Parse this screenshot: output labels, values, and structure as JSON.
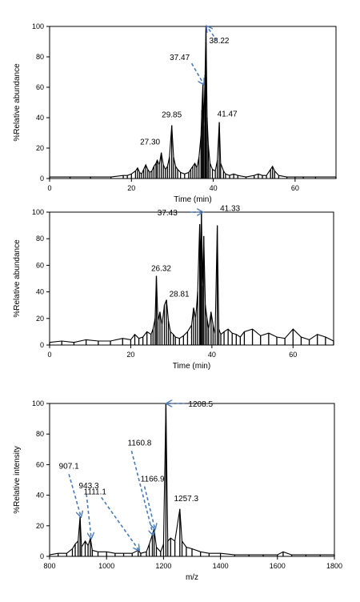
{
  "colors": {
    "trace": "#000000",
    "arrow": "#4a7ab8",
    "axis": "#000000",
    "background": "#ffffff"
  },
  "chart_data": [
    {
      "type": "line",
      "title": "",
      "xlabel": "Time (min)",
      "ylabel": "%Relative abundance",
      "xlim": [
        0,
        70
      ],
      "ylim": [
        0,
        100
      ],
      "xticks": [
        0,
        20,
        40,
        60
      ],
      "yticks": [
        0,
        20,
        40,
        60,
        80,
        100
      ],
      "grid": false,
      "series": [
        {
          "x": [
            0,
            5,
            10,
            15,
            18,
            19,
            20,
            21,
            21.5,
            22,
            22.5,
            23,
            23.5,
            24,
            24.5,
            25,
            25.5,
            26,
            26.3,
            26.8,
            27.3,
            27.8,
            28.3,
            28.8,
            29.3,
            29.85,
            30.3,
            30.8,
            31.3,
            32,
            33,
            34,
            34.5,
            35,
            35.5,
            36,
            36.5,
            37,
            37.2,
            37.47,
            37.7,
            38,
            38.22,
            38.5,
            38.8,
            39.2,
            39.8,
            40.5,
            41,
            41.47,
            41.8,
            42.5,
            43,
            44,
            45,
            46,
            48,
            50,
            51,
            52,
            53,
            54,
            54.5,
            55,
            56,
            58,
            60,
            62,
            65,
            70
          ],
          "y": [
            1,
            1,
            1,
            1,
            2,
            2,
            3,
            5,
            7,
            4,
            3,
            6,
            9,
            6,
            4,
            5,
            8,
            10,
            12,
            9,
            17,
            9,
            6,
            8,
            14,
            35,
            14,
            8,
            6,
            4,
            3,
            4,
            6,
            8,
            10,
            7,
            14,
            28,
            45,
            62,
            35,
            68,
            100,
            40,
            22,
            10,
            6,
            5,
            12,
            37,
            10,
            5,
            3,
            2,
            3,
            2,
            1,
            2,
            3,
            2,
            2,
            6,
            8,
            5,
            2,
            1,
            1,
            1,
            1,
            1
          ]
        }
      ],
      "annotations": [
        {
          "label": "38.22",
          "x": 38.22,
          "y": 100,
          "arrow": true
        },
        {
          "label": "37.47",
          "x": 37.47,
          "y": 62,
          "arrow": true
        },
        {
          "label": "29.85",
          "x": 29.85,
          "y": 35,
          "arrow": false
        },
        {
          "label": "41.47",
          "x": 41.47,
          "y": 37,
          "arrow": false
        },
        {
          "label": "27.30",
          "x": 27.3,
          "y": 17,
          "arrow": false
        }
      ]
    },
    {
      "type": "line",
      "title": "",
      "xlabel": "Time (min)",
      "ylabel": "%Relative abundance",
      "xlim": [
        0,
        70
      ],
      "ylim": [
        0,
        100
      ],
      "xticks": [
        0,
        20,
        40,
        60
      ],
      "yticks": [
        0,
        20,
        40,
        60,
        80,
        100
      ],
      "grid": false,
      "series": [
        {
          "x": [
            0,
            3,
            6,
            9,
            12,
            15,
            18,
            20,
            21,
            22,
            23,
            24,
            25,
            25.5,
            26,
            26.32,
            26.7,
            27.2,
            27.7,
            28.3,
            28.81,
            29.3,
            29.8,
            30.5,
            31,
            32,
            33,
            34,
            35,
            35.5,
            36,
            36.5,
            37,
            37.2,
            37.43,
            37.7,
            38,
            38.4,
            38.8,
            39.2,
            39.8,
            40.3,
            40.8,
            41.33,
            41.7,
            42.2,
            43,
            44,
            45,
            46,
            47,
            48,
            50,
            52,
            54,
            56,
            58,
            60,
            62,
            64,
            66,
            68,
            70
          ],
          "y": [
            2,
            3,
            2,
            4,
            3,
            3,
            5,
            4,
            8,
            5,
            6,
            10,
            8,
            12,
            20,
            52,
            18,
            25,
            15,
            30,
            34,
            18,
            10,
            8,
            6,
            5,
            7,
            10,
            15,
            28,
            20,
            40,
            91,
            60,
            100,
            45,
            82,
            30,
            20,
            12,
            25,
            15,
            8,
            90,
            12,
            8,
            10,
            12,
            9,
            8,
            6,
            10,
            12,
            7,
            9,
            6,
            5,
            12,
            6,
            4,
            8,
            6,
            3
          ]
        }
      ],
      "annotations": [
        {
          "label": "37.43",
          "x": 37.43,
          "y": 100,
          "arrow": true
        },
        {
          "label": "41.33",
          "x": 41.33,
          "y": 90,
          "arrow": false
        },
        {
          "label": "26.32",
          "x": 26.32,
          "y": 52,
          "arrow": false
        },
        {
          "label": "28.81",
          "x": 28.81,
          "y": 34,
          "arrow": false
        }
      ]
    },
    {
      "type": "line",
      "title": "",
      "xlabel": "m/z",
      "ylabel": "%Relative intensity",
      "xlim": [
        800,
        1800
      ],
      "ylim": [
        0,
        100
      ],
      "xticks": [
        800,
        1000,
        1200,
        1400,
        1600,
        1800
      ],
      "yticks": [
        0,
        20,
        40,
        60,
        80,
        100
      ],
      "grid": false,
      "series": [
        {
          "x": [
            800,
            830,
            860,
            880,
            890,
            900,
            907.1,
            912,
            925,
            935,
            943.3,
            950,
            970,
            1000,
            1030,
            1060,
            1090,
            1111.1,
            1120,
            1140,
            1150,
            1160.8,
            1166.9,
            1175,
            1190,
            1200,
            1208.5,
            1215,
            1225,
            1240,
            1257.3,
            1265,
            1280,
            1300,
            1330,
            1360,
            1400,
            1450,
            1500,
            1550,
            1600,
            1620,
            1650,
            1700,
            1750,
            1800
          ],
          "y": [
            1,
            2,
            2,
            5,
            8,
            10,
            26,
            6,
            10,
            7,
            12,
            4,
            3,
            3,
            2,
            2,
            2,
            4,
            2,
            3,
            8,
            14,
            18,
            6,
            3,
            8,
            100,
            10,
            12,
            10,
            31,
            10,
            6,
            5,
            3,
            2,
            2,
            1,
            1,
            1,
            1,
            3,
            1,
            1,
            1,
            1
          ]
        }
      ],
      "annotations": [
        {
          "label": "1208.5",
          "x": 1208.5,
          "y": 100,
          "arrow": true
        },
        {
          "label": "907.1",
          "x": 907.1,
          "y": 26,
          "arrow": true
        },
        {
          "label": "943.3",
          "x": 943.3,
          "y": 12,
          "arrow": true
        },
        {
          "label": "1160.8",
          "x": 1160.8,
          "y": 14,
          "arrow": true
        },
        {
          "label": "1166.9",
          "x": 1166.9,
          "y": 18,
          "arrow": true
        },
        {
          "label": "1111.1",
          "x": 1111.1,
          "y": 4,
          "arrow": true
        },
        {
          "label": "1257.3",
          "x": 1257.3,
          "y": 31,
          "arrow": false
        }
      ]
    }
  ]
}
